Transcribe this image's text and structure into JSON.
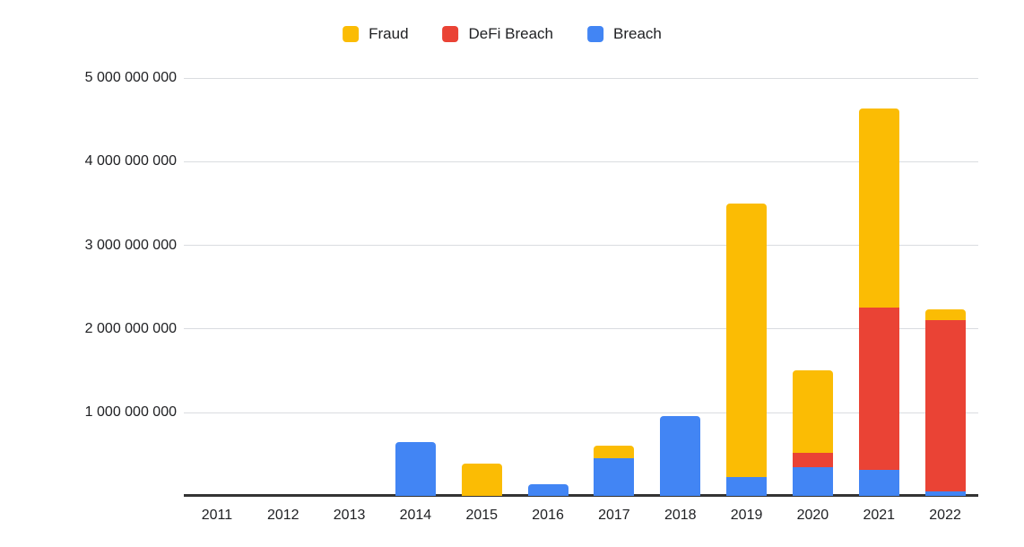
{
  "legend": {
    "items": [
      {
        "label": "Fraud",
        "color": "#FBBC04"
      },
      {
        "label": "DeFi Breach",
        "color": "#EA4335"
      },
      {
        "label": "Breach",
        "color": "#4285F4"
      }
    ]
  },
  "chart_data": {
    "type": "bar",
    "stacked": true,
    "title": "",
    "xlabel": "",
    "ylabel": "",
    "categories": [
      "2011",
      "2012",
      "2013",
      "2014",
      "2015",
      "2016",
      "2017",
      "2018",
      "2019",
      "2020",
      "2021",
      "2022"
    ],
    "series": [
      {
        "name": "Breach",
        "color": "#4285F4",
        "values": [
          0,
          0,
          0,
          650000000,
          0,
          140000000,
          455000000,
          960000000,
          230000000,
          350000000,
          320000000,
          60000000
        ]
      },
      {
        "name": "DeFi Breach",
        "color": "#EA4335",
        "values": [
          0,
          0,
          0,
          0,
          0,
          0,
          0,
          0,
          0,
          170000000,
          1940000000,
          2050000000
        ]
      },
      {
        "name": "Fraud",
        "color": "#FBBC04",
        "values": [
          0,
          0,
          0,
          0,
          390000000,
          0,
          150000000,
          0,
          3270000000,
          990000000,
          2380000000,
          120000000
        ]
      }
    ],
    "stack_order_bottom_to_top": [
      "Breach",
      "DeFi Breach",
      "Fraud"
    ],
    "legend_order": [
      "Fraud",
      "DeFi Breach",
      "Breach"
    ],
    "ylim": [
      0,
      5000000000
    ],
    "yticks": [
      {
        "value": 1000000000,
        "label": "1 000 000 000"
      },
      {
        "value": 2000000000,
        "label": "2 000 000 000"
      },
      {
        "value": 3000000000,
        "label": "3 000 000 000"
      },
      {
        "value": 4000000000,
        "label": "4 000 000 000"
      },
      {
        "value": 5000000000,
        "label": "5 000 000 000"
      }
    ],
    "grid": true,
    "legend_position": "top",
    "colors": {
      "grid": "#dadce0",
      "axis_line": "#333333",
      "label_text": "#202124",
      "background": "#ffffff"
    }
  }
}
